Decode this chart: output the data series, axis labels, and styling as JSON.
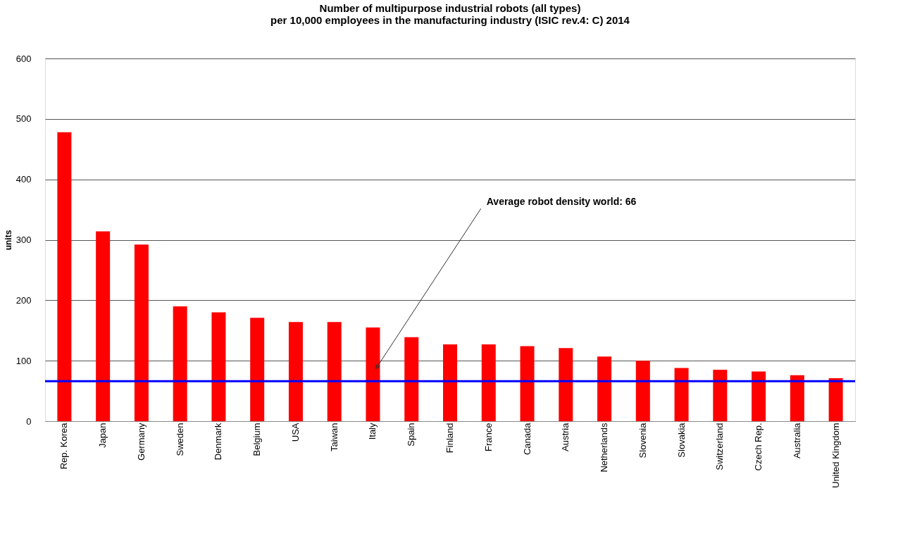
{
  "chart_data": {
    "type": "bar",
    "title": [
      "Number of multipurpose industrial robots (all types)",
      "per 10,000 employees in the manufacturing industry (ISIC rev.4: C) 2014"
    ],
    "ylabel": "units",
    "categories": [
      "Rep. Korea",
      "Japan",
      "Germany",
      "Sweden",
      "Denmark",
      "Belgium",
      "USA",
      "Taiwan",
      "Italy",
      "Spain",
      "Finland",
      "France",
      "Canada",
      "Austria",
      "Netherlands",
      "Slovenia",
      "Slovakia",
      "Switzerland",
      "Czech Rep.",
      "Australia",
      "United Kingdom"
    ],
    "values": [
      478,
      314,
      292,
      190,
      180,
      171,
      164,
      164,
      155,
      139,
      127,
      127,
      124,
      121,
      107,
      100,
      88,
      85,
      82,
      76,
      71
    ],
    "color": "#ff0000",
    "ylim": [
      0,
      600
    ],
    "yticks": [
      0,
      100,
      200,
      300,
      400,
      500,
      600
    ],
    "grid": "y",
    "annotations": [
      "Average robot density world: 66"
    ],
    "ref_lines": [
      {
        "axis": "y",
        "value": 66,
        "color": "#0000ff"
      }
    ]
  }
}
